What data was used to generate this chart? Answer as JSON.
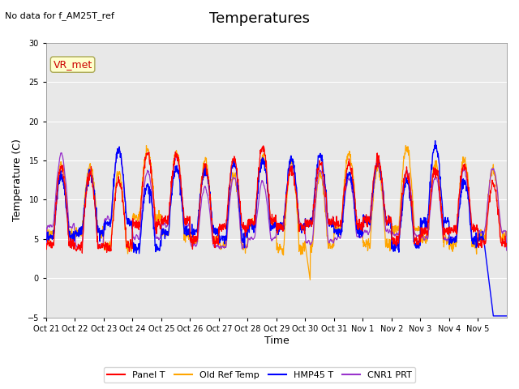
{
  "title": "Temperatures",
  "subtitle": "No data for f_AM25T_ref",
  "ylabel": "Temperature (C)",
  "xlabel": "Time",
  "annotation": "VR_met",
  "ylim": [
    -5,
    30
  ],
  "yticks": [
    -5,
    0,
    5,
    10,
    15,
    20,
    25,
    30
  ],
  "x_tick_labels": [
    "Oct 21",
    "Oct 22",
    "Oct 23",
    "Oct 24",
    "Oct 25",
    "Oct 26",
    "Oct 27",
    "Oct 28",
    "Oct 29",
    "Oct 30",
    "Oct 31",
    "Nov 1",
    "Nov 2",
    "Nov 3",
    "Nov 4",
    "Nov 5"
  ],
  "legend_entries": [
    "Panel T",
    "Old Ref Temp",
    "HMP45 T",
    "CNR1 PRT"
  ],
  "colors": {
    "panel_t": "#ff0000",
    "old_ref_temp": "#ffa500",
    "hmp45_t": "#0000ff",
    "cnr1_prt": "#9933cc"
  },
  "title_fontsize": 13,
  "axes_bg": "#e8e8e8",
  "n_days": 16,
  "pts_per_hour": 4
}
